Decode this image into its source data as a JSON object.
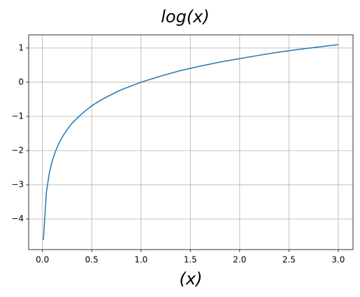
{
  "chart_data": {
    "type": "line",
    "title": "log(x)",
    "x_label": "(x)",
    "x": [
      0.01,
      0.04,
      0.07,
      0.1,
      0.13,
      0.16,
      0.2,
      0.25,
      0.3,
      0.4,
      0.5,
      0.6,
      0.7,
      0.8,
      1.0,
      1.2,
      1.4,
      1.6,
      1.8,
      2.0,
      2.2,
      2.4,
      2.6,
      2.8,
      3.0
    ],
    "series": [
      {
        "color": "#1f77b4",
        "values": [
          -4.61,
          -3.22,
          -2.66,
          -2.3,
          -2.04,
          -1.83,
          -1.61,
          -1.39,
          -1.2,
          -0.92,
          -0.69,
          -0.51,
          -0.36,
          -0.22,
          0,
          0.18,
          0.34,
          0.47,
          0.59,
          0.69,
          0.79,
          0.88,
          0.96,
          1.03,
          1.1
        ]
      }
    ],
    "xlim": [
      -0.1395,
      3.1495
    ],
    "ylim": [
      -4.895,
      1.385
    ],
    "xticks": [
      {
        "value": 0,
        "label": "0.0"
      },
      0.5,
      {
        "value": 1,
        "label": "1.0"
      },
      1.5,
      {
        "value": 2,
        "label": "2.0"
      },
      2.5,
      {
        "value": 3,
        "label": "3.0"
      }
    ],
    "yticks": [
      {
        "value": -4,
        "label": "−4"
      },
      {
        "value": -3,
        "label": "−3"
      },
      {
        "value": -2,
        "label": "−2"
      },
      {
        "value": -1,
        "label": "−1"
      },
      0,
      1
    ],
    "grid": true
  }
}
